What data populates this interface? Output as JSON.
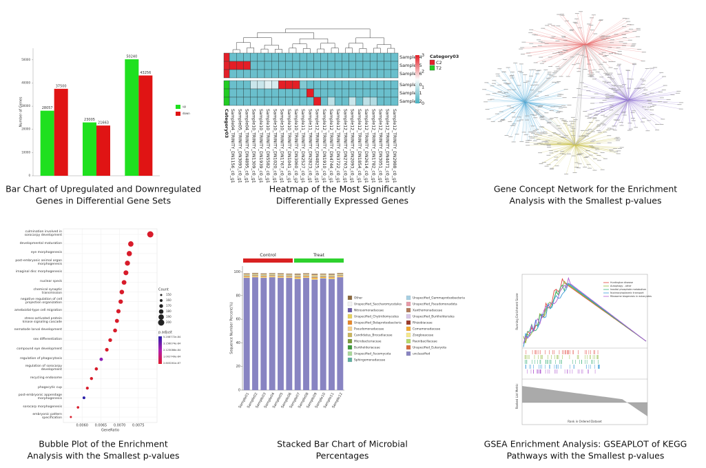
{
  "panels": [
    {
      "caption": [
        "Bar Chart of Upregulated and Downregulated",
        "Genes in Differential Gene Sets"
      ],
      "chart": {
        "type": "bar",
        "ylabel": "Number of Genes",
        "ylim": [
          0,
          55000
        ],
        "yticks": [
          0,
          10000,
          20000,
          30000,
          40000,
          50000
        ],
        "series": [
          {
            "name": "up",
            "color": "#1fe01f",
            "values": [
              28057,
              23005,
              50240
            ]
          },
          {
            "name": "down",
            "color": "#e01414",
            "values": [
              37500,
              21663,
              43256
            ]
          }
        ]
      }
    },
    {
      "caption": [
        "Heatmap of the Most Significantly",
        "Differentially Expressed Genes"
      ],
      "chart": {
        "type": "heatmap",
        "category_title": "Category03",
        "legend": [
          {
            "name": "C2",
            "color": "#e3202a"
          },
          {
            "name": "T2",
            "color": "#22cc22"
          }
        ],
        "rows": [
          "Sample04",
          "Sample05",
          "Sample06",
          "Sample10",
          "Sample11",
          "Sample12"
        ],
        "row_category": [
          "C2",
          "C2",
          "C2",
          "T2",
          "T2",
          "T2"
        ],
        "columns": [
          "Sample04_TRINITY_DN1156_c0_g1",
          "Sample05_TRINITY_DN3093_c0_g1",
          "Sample04_TRINITY_DN4895_c0_g1",
          "Sample10_TRINITY_DN1309_c0_g1",
          "Sample10_TRINITY_DN1939_c0_g1",
          "Sample10_TRINITY_DN5582_c0_g1",
          "Sample10_TRINITY_DN1020_c0_g1",
          "Sample10_TRINITY_DN1767_c0_g1",
          "Sample10_TRINITY_DN1041_c0_g1",
          "Sample10_TRINITY_DN3060_c0_g2",
          "Sample11_TRINITY_DN2527_c0_g1",
          "Sample11_TRINITY_DN2823_c0_g1",
          "Sample12_TRINITY_DN4825_c0_g1",
          "Sample12_TRINITY_DN1910_c0_g1",
          "Sample12_TRINITY_DN4744_c0_g1",
          "Sample12_TRINITY_DN3722_c0_g1",
          "Sample12_TRINITY_DN2763_c0_g1",
          "Sample12_TRINITY_DN2093_c0_g1",
          "Sample12_TRINITY_DN1854_c0_g1",
          "Sample12_TRINITY_DN2614_c0_g1",
          "Sample12_TRINITY_DN1782_c0_g1",
          "Sample12_TRINITY_DN3051_c0_g1",
          "Sample12_TRINITY_DN4471_c0_g1",
          "Sample12_TRINITY_DN2988_c0_g1"
        ],
        "values": [
          [
            0.3,
            0.3,
            0.3,
            0.3,
            0.3,
            0.3,
            0.3,
            0.3,
            0.3,
            0.3,
            0.3,
            0.3,
            0.3,
            0.3,
            0.3,
            0.3,
            0.3,
            0.3,
            0.3,
            0.3,
            0.3,
            0.3,
            0.3,
            0.3
          ],
          [
            3,
            3,
            3,
            0.3,
            0.3,
            0.3,
            0.3,
            0.3,
            0.3,
            0.3,
            0.3,
            0.3,
            0.3,
            0.3,
            0.3,
            0.3,
            0.3,
            0.3,
            0.3,
            0.3,
            0.3,
            0.3,
            0.3,
            0.3
          ],
          [
            0.3,
            0.3,
            0.3,
            0.3,
            0.3,
            0.3,
            0.3,
            0.3,
            0.3,
            0.3,
            0.3,
            0.3,
            0.3,
            0.3,
            0.3,
            0.3,
            0.3,
            0.3,
            0.3,
            0.3,
            0.3,
            0.3,
            0.3,
            0.3
          ],
          [
            0.3,
            0.3,
            0.3,
            1.1,
            1.1,
            1.3,
            1.2,
            3,
            3,
            3,
            0.5,
            0.3,
            0.3,
            0.3,
            0.3,
            0.3,
            0.3,
            0.3,
            0.3,
            0.3,
            0.3,
            0.3,
            0.3,
            0.3
          ],
          [
            0.3,
            0.3,
            0.3,
            0.3,
            0.3,
            0.3,
            0.3,
            0.3,
            0.3,
            0.3,
            0.3,
            3,
            0.3,
            0.3,
            0.3,
            0.3,
            0.3,
            0.3,
            0.3,
            0.3,
            0.3,
            0.3,
            0.3,
            0.3
          ],
          [
            0.3,
            0.3,
            0.3,
            0.3,
            0.3,
            0.3,
            0.3,
            0.3,
            0.3,
            0.3,
            0.3,
            0.3,
            3,
            0.3,
            1,
            0.3,
            0.3,
            1.1,
            0.3,
            1,
            0.9,
            0.3,
            0.3,
            0.3
          ]
        ],
        "zlim": [
          0,
          3
        ],
        "zticks": [
          0,
          1,
          2,
          3
        ]
      }
    },
    {
      "caption": [
        "Gene Concept Network for the Enrichment",
        "Analysis with the Smallest p-values"
      ]
    },
    {
      "caption": [
        "Bubble Plot of the Enrichment",
        "Analysis with the Smallest p-values"
      ],
      "chart": {
        "type": "scatter",
        "xlabel": "GeneRatio",
        "xlim": [
          0.0055,
          0.008
        ],
        "xticks": [
          {
            "value": 0.006,
            "label": "0.0060"
          },
          {
            "value": 0.0065,
            "label": "0.0065"
          },
          {
            "value": 0.007,
            "label": "0.0070"
          },
          {
            "value": 0.0075,
            "label": "0.0075"
          }
        ],
        "categories": [
          "culmination involved in sorocarpy development",
          "developmental maturation",
          "eye morphogenesis",
          "post-embryonic animal organ morphogenesis",
          "imaginal disc morphogenesis",
          "nuclear speck",
          "chemical synaptic transmission",
          "negative regulation of cell projection organization",
          "ameboidal-type cell migration",
          "stress-activated protein kinase signaling cascade",
          "nematode larval development",
          "sex differentiation",
          "compound eye development",
          "regulation of phagocytosis",
          "regulation of sorocarpy development",
          "recycling endosome",
          "phagocytic cup",
          "post-embryonic appendage morphogenesis",
          "sorocarp morphogenesis",
          "embryonic pattern specification"
        ],
        "x": [
          0.00782,
          0.0073,
          0.00726,
          0.00721,
          0.00717,
          0.00712,
          0.00706,
          0.00703,
          0.00697,
          0.00693,
          0.00688,
          0.00675,
          0.00666,
          0.00651,
          0.00638,
          0.00625,
          0.00614,
          0.00605,
          0.00589,
          0.0057
        ],
        "sizes": [
          200,
          190,
          188,
          186,
          184,
          182,
          180,
          178,
          176,
          174,
          172,
          170,
          168,
          166,
          164,
          162,
          160,
          158,
          155,
          150
        ],
        "colors": [
          "#d81b2a",
          "#d81b2a",
          "#d81b2a",
          "#d81b2a",
          "#d81b2a",
          "#d81b2a",
          "#d81b2a",
          "#d81b2a",
          "#d81b2a",
          "#d81b2a",
          "#d81b2a",
          "#d81b2a",
          "#d81b2a",
          "#8a1fb5",
          "#d81b2a",
          "#d81b2a",
          "#d81b2a",
          "#2a1fa8",
          "#d81b2a",
          "#d81b2a"
        ],
        "size_title": "Count",
        "size_ticks": [
          150,
          160,
          170,
          180,
          190,
          200
        ],
        "color_title": "p.adjust",
        "color_labels": [
          "5.208772e-84",
          "3.156074e-84",
          "2.123086e-84",
          "1.002749e-84",
          "2.603261e-87"
        ]
      }
    },
    {
      "caption": [
        "Stacked Bar Chart of Microbial",
        "Percentages"
      ],
      "chart": {
        "type": "stacked_bar",
        "ylabel": "Sequence Number Percent(%)",
        "ylim": [
          0,
          105
        ],
        "yticks": [
          0,
          20,
          40,
          60,
          80,
          100
        ],
        "categories": [
          "Sample01",
          "Sample02",
          "Sample03",
          "Sample04",
          "Sample05",
          "Sample06",
          "Sample07",
          "Sample08",
          "Sample09",
          "Sample10",
          "Sample11",
          "Sample12"
        ],
        "groups": [
          {
            "name": "Control",
            "color": "#d92121"
          },
          {
            "name": "Treat",
            "color": "#2ed12e"
          }
        ],
        "sample_group": [
          "Control",
          "Control",
          "Control",
          "Control",
          "Control",
          "Control",
          "Treat",
          "Treat",
          "Treat",
          "Treat",
          "Treat",
          "Treat"
        ],
        "series": [
          {
            "name": "Other",
            "color": "#8c6a3e",
            "values": [
              0.6,
              0.5,
              0.6,
              0.5,
              0.6,
              0.5,
              0.7,
              0.6,
              0.8,
              0.6,
              0.7,
              0.5
            ]
          },
          {
            "name": "Unspecified_Saccharomycetales",
            "color": "#f2f2f2",
            "values": [
              0.1,
              0.1,
              0.1,
              0.1,
              0.1,
              0.1,
              0.1,
              0.1,
              0.1,
              0.1,
              0.1,
              0.1
            ]
          },
          {
            "name": "Nitrosomonadaceae",
            "color": "#6a5aa8",
            "values": [
              0.1,
              0.1,
              0.1,
              0.1,
              0.1,
              0.1,
              0.1,
              0.1,
              0.1,
              0.1,
              0.1,
              0.1
            ]
          },
          {
            "name": "Unspecified_Chytridiomycetes",
            "color": "#e8d25a",
            "values": [
              0.1,
              0.1,
              0.1,
              0.1,
              0.1,
              0.1,
              0.1,
              0.1,
              0.1,
              0.1,
              0.1,
              0.1
            ]
          },
          {
            "name": "Unspecified_Betaproteobacteria",
            "color": "#e7872a",
            "values": [
              0.1,
              0.1,
              0.1,
              0.1,
              0.1,
              0.1,
              0.1,
              0.1,
              0.1,
              0.1,
              0.1,
              0.1
            ]
          },
          {
            "name": "Pseudomonadaceae",
            "color": "#f5d08a",
            "values": [
              0.4,
              0.5,
              0.4,
              0.3,
              0.5,
              0.4,
              0.6,
              0.5,
              0.7,
              0.5,
              0.6,
              0.4
            ]
          },
          {
            "name": "Candidatus_Brocadiaceae",
            "color": "#c9b45c",
            "values": [
              0.1,
              0.1,
              0.1,
              0.1,
              0.1,
              0.1,
              0.1,
              0.1,
              0.1,
              0.1,
              0.1,
              0.1
            ]
          },
          {
            "name": "Microbacteriaceae",
            "color": "#7a9a3a",
            "values": [
              0.1,
              0.1,
              0.1,
              0.1,
              0.1,
              0.1,
              0.1,
              0.1,
              0.1,
              0.1,
              0.1,
              0.1
            ]
          },
          {
            "name": "Burkholderiaceae",
            "color": "#3d9a3d",
            "values": [
              0.1,
              0.1,
              0.1,
              0.1,
              0.1,
              0.1,
              0.1,
              0.1,
              0.1,
              0.1,
              0.1,
              0.1
            ]
          },
          {
            "name": "Unspecified_Ascomycota",
            "color": "#a9d89a",
            "values": [
              0.1,
              0.1,
              0.1,
              0.1,
              0.1,
              0.1,
              0.1,
              0.1,
              0.1,
              0.1,
              0.1,
              0.1
            ]
          },
          {
            "name": "Sphingomonadaceae",
            "color": "#5fb0a0",
            "values": [
              0.1,
              0.1,
              0.1,
              0.1,
              0.1,
              0.1,
              0.1,
              0.1,
              0.1,
              0.1,
              0.1,
              0.1
            ]
          },
          {
            "name": "Unspecified_Gammaproteobacteria",
            "color": "#a6cfe3",
            "values": [
              0.1,
              0.1,
              0.1,
              0.1,
              0.1,
              0.1,
              0.1,
              0.1,
              0.1,
              0.1,
              0.1,
              0.1
            ]
          },
          {
            "name": "Unspecified_Pseudomonadota",
            "color": "#e89aa8",
            "values": [
              0.1,
              0.1,
              0.1,
              0.1,
              0.1,
              0.1,
              0.1,
              0.1,
              0.1,
              0.1,
              0.1,
              0.1
            ]
          },
          {
            "name": "Xanthomonadaceae",
            "color": "#b07a5a",
            "values": [
              0.3,
              0.3,
              0.3,
              0.3,
              0.3,
              0.3,
              0.4,
              0.3,
              0.4,
              0.3,
              0.4,
              0.3
            ]
          },
          {
            "name": "Unspecified_Burkholderiales",
            "color": "#d8c7e8",
            "values": [
              0.1,
              0.1,
              0.1,
              0.1,
              0.1,
              0.1,
              0.1,
              0.1,
              0.1,
              0.1,
              0.1,
              0.1
            ]
          },
          {
            "name": "Rhizobiaceae",
            "color": "#9a3a2a",
            "values": [
              0.1,
              0.1,
              0.1,
              0.1,
              0.1,
              0.1,
              0.1,
              0.1,
              0.1,
              0.1,
              0.1,
              0.1
            ]
          },
          {
            "name": "Comamonadaceae",
            "color": "#f0a830",
            "values": [
              0.6,
              0.5,
              0.6,
              0.5,
              0.6,
              0.5,
              0.8,
              0.6,
              0.9,
              0.7,
              0.8,
              0.5
            ]
          },
          {
            "name": "Zoogloeaceae",
            "color": "#f7e98a",
            "values": [
              0.4,
              0.4,
              0.4,
              0.4,
              0.4,
              0.4,
              0.5,
              0.4,
              0.6,
              0.4,
              0.5,
              0.4
            ]
          },
          {
            "name": "Paenibacillaceae",
            "color": "#b5d96a",
            "values": [
              0.1,
              0.1,
              0.1,
              0.1,
              0.1,
              0.1,
              0.1,
              0.1,
              0.1,
              0.1,
              0.1,
              0.1
            ]
          },
          {
            "name": "Unspecified_Eukaryota",
            "color": "#d96a3a",
            "values": [
              0.1,
              0.1,
              0.1,
              0.1,
              0.1,
              0.1,
              0.1,
              0.1,
              0.1,
              0.1,
              0.1,
              0.1
            ]
          },
          {
            "name": "unclassified",
            "color": "#8884c2",
            "values": [
              95,
              95.5,
              95,
              95.5,
              95,
              95,
              94,
              95,
              93.5,
              94.5,
              94,
              95.5
            ]
          }
        ]
      }
    },
    {
      "caption": [
        "GSEA Enrichment Analysis: GSEAPLOT of KEGG",
        "Pathways with the Smallest p-values"
      ],
      "illustration": {
        "ylabel_top": "Running Enrichment Score",
        "ylabel_bottom": "Ranked List Metric",
        "xlabel": "Rank in Ordered Dataset",
        "legend": [
          "Huntington disease",
          "Autophagy - other",
          "Inositol phosphate metabolism",
          "Nucleocytoplasmic transport",
          "Ribosome biogenesis in eukaryotes"
        ]
      }
    }
  ]
}
